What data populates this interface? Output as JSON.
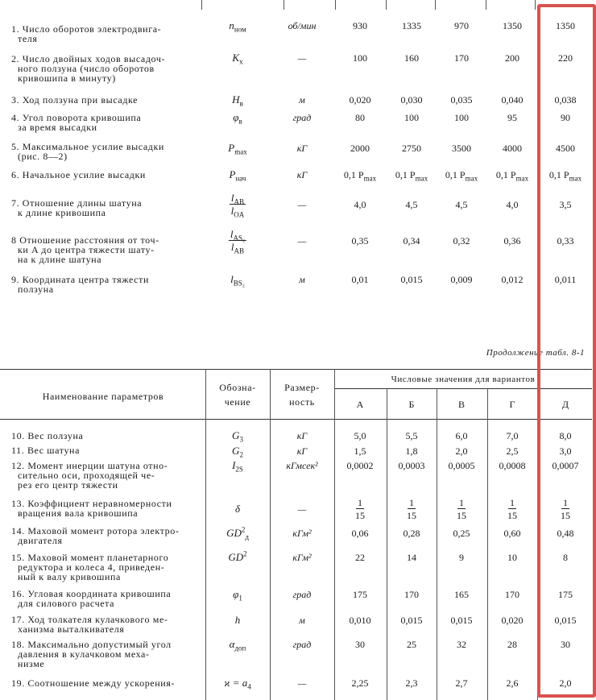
{
  "top": {
    "rows": [
      {
        "label": [
          "1. Число оборотов электродвига-",
          "теля"
        ],
        "symbol": {
          "base": "n",
          "sub": "ном"
        },
        "unit": "об/мин",
        "values": [
          "930",
          "1335",
          "970",
          "1350",
          "1350"
        ]
      },
      {
        "label": [
          "2. Число двойных ходов высадоч-",
          "ного ползуна (число оборотов",
          "кривошипа в минуту)"
        ],
        "symbol": {
          "base": "K",
          "sub": "x"
        },
        "unit": "—",
        "values": [
          "100",
          "160",
          "170",
          "200",
          "220"
        ]
      },
      {
        "label": [
          "3. Ход ползуна при высадке"
        ],
        "symbol": {
          "base": "H",
          "sub": "в"
        },
        "unit": "м",
        "values": [
          "0,020",
          "0,030",
          "0,035",
          "0,040",
          "0,038"
        ]
      },
      {
        "label": [
          "4. Угол поворота кривошипа",
          "за время высадки"
        ],
        "symbol": {
          "base": "φ",
          "sub": "в"
        },
        "unit": "град",
        "values": [
          "80",
          "100",
          "100",
          "95",
          "90"
        ]
      },
      {
        "label": [
          "5. Максимальное усилие высадки",
          "(рис. 8—2)"
        ],
        "symbol": {
          "base": "P",
          "sub": "max"
        },
        "unit": "кГ",
        "values": [
          "2000",
          "2750",
          "3500",
          "4000",
          "4500"
        ]
      },
      {
        "label": [
          "6. Начальное усилие высадки"
        ],
        "symbol": {
          "base": "P",
          "sub": "нач"
        },
        "unit": "кГ",
        "values": [
          {
            "base": "0,1 P",
            "sub": "max"
          },
          {
            "base": "0,1 P",
            "sub": "max"
          },
          {
            "base": "0,1 P",
            "sub": "max"
          },
          {
            "base": "0,1 P",
            "sub": "max"
          },
          {
            "base": "0,1 P",
            "sub": "max"
          }
        ]
      },
      {
        "label": [
          "7. Отношение длины шатуна",
          "к длине кривошипа"
        ],
        "symbol": {
          "num": {
            "base": "l",
            "sub": "AB"
          },
          "den": {
            "base": "l",
            "sub": "OA"
          }
        },
        "unit": "—",
        "values": [
          "4,0",
          "4,5",
          "4,5",
          "4,0",
          "3,5"
        ]
      },
      {
        "label": [
          "8 Отношение расстояния от точ-",
          "ки A до центра тяжести шату-",
          "на к длине шатуна"
        ],
        "symbol": {
          "num": {
            "base": "l",
            "sub": "AS₂"
          },
          "den": {
            "base": "l",
            "sub": "AB"
          }
        },
        "unit": "—",
        "values": [
          "0,35",
          "0,34",
          "0,32",
          "0,36",
          "0,33"
        ]
      },
      {
        "label": [
          "9. Координата центра тяжести",
          "ползуна"
        ],
        "symbol": {
          "base": "l",
          "sub": "BS₂"
        },
        "unit": "м",
        "values": [
          "0,01",
          "0,015",
          "0,009",
          "0,012",
          "0,011"
        ]
      }
    ]
  },
  "caption": "Продолжение табл. 8-1",
  "header": {
    "name": "Наименование параметров",
    "symbol": [
      "Обозна-",
      "чение"
    ],
    "unit": [
      "Размер-",
      "ность"
    ],
    "group": "Числовые значения для вариантов",
    "variants": [
      "А",
      "Б",
      "В",
      "Г",
      "Д"
    ]
  },
  "bottom": {
    "rows": [
      {
        "label": [
          "10. Вес ползуна"
        ],
        "symbol": {
          "base": "G",
          "sub": "3"
        },
        "unit": "кГ",
        "values": [
          "5,0",
          "5,5",
          "6,0",
          "7,0",
          "8,0"
        ]
      },
      {
        "label": [
          "11. Вес шатуна"
        ],
        "symbol": {
          "base": "G",
          "sub": "2"
        },
        "unit": "кГ",
        "values": [
          "1,5",
          "1,8",
          "2,0",
          "2,5",
          "3,0"
        ]
      },
      {
        "label": [
          "12. Момент инерции шатуна отно-",
          "сительно оси, проходящей че-",
          "рез его центр тяжести"
        ],
        "symbol": {
          "base": "I",
          "sub": "2S"
        },
        "unit": "кГмсек²",
        "values": [
          "0,0002",
          "0,0003",
          "0,0005",
          "0,0008",
          "0,0007"
        ]
      },
      {
        "label": [
          "13. Коэффициент неравномерности",
          "вращения вала кривошипа"
        ],
        "symbol": {
          "base": "δ"
        },
        "unit": "—",
        "values": [
          {
            "num": "1",
            "den": "15"
          },
          {
            "num": "1",
            "den": "15"
          },
          {
            "num": "1",
            "den": "15"
          },
          {
            "num": "1",
            "den": "15"
          },
          {
            "num": "1",
            "den": "15"
          }
        ]
      },
      {
        "label": [
          "14. Маховой момент ротора электро-",
          "двигателя"
        ],
        "symbol": {
          "base": "GD",
          "sup": "2",
          "sub": "д"
        },
        "unit": "кГм²",
        "values": [
          "0,06",
          "0,28",
          "0,25",
          "0,60",
          "0,48"
        ]
      },
      {
        "label": [
          "15. Маховой момент планетарного",
          "редуктора и колеса 4, приведен-",
          "ный к валу кривошипа"
        ],
        "symbol": {
          "base": "GD",
          "sup": "2"
        },
        "unit": "кГм²",
        "values": [
          "22",
          "14",
          "9",
          "10",
          "8"
        ]
      },
      {
        "label": [
          "16. Угловая координата кривошипа",
          "для силового расчета"
        ],
        "symbol": {
          "base": "φ",
          "sub": "1"
        },
        "unit": "град",
        "values": [
          "175",
          "170",
          "165",
          "170",
          "175"
        ]
      },
      {
        "label": [
          "17. Ход толкателя кулачкового ме-",
          "ханизма выталкивателя"
        ],
        "symbol": {
          "base": "h"
        },
        "unit": "м",
        "values": [
          "0,010",
          "0,015",
          "0,015",
          "0,020",
          "0,015"
        ]
      },
      {
        "label": [
          "18. Максимально допустимый угол",
          "давления в кулачковом меха-",
          "низме"
        ],
        "symbol": {
          "base": "α",
          "sub": "доп"
        },
        "unit": "град",
        "values": [
          "30",
          "25",
          "32",
          "28",
          "30"
        ]
      },
      {
        "label": [
          "19. Соотношение между ускорения-"
        ],
        "symbol": {
          "base": "ϰ = a",
          "sub": "4"
        },
        "unit": "—",
        "values": [
          "2,25",
          "2,3",
          "2,7",
          "2,6",
          "2,0"
        ]
      }
    ]
  }
}
